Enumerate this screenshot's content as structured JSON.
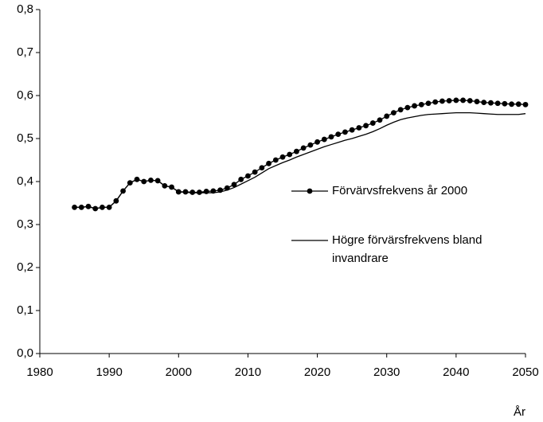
{
  "chart_data": {
    "type": "line",
    "x": [
      1985,
      1986,
      1987,
      1988,
      1989,
      1990,
      1991,
      1992,
      1993,
      1994,
      1995,
      1996,
      1997,
      1998,
      1999,
      2000,
      2001,
      2002,
      2003,
      2004,
      2005,
      2006,
      2007,
      2008,
      2009,
      2010,
      2011,
      2012,
      2013,
      2014,
      2015,
      2016,
      2017,
      2018,
      2019,
      2020,
      2021,
      2022,
      2023,
      2024,
      2025,
      2026,
      2027,
      2028,
      2029,
      2030,
      2031,
      2032,
      2033,
      2034,
      2035,
      2036,
      2037,
      2038,
      2039,
      2040,
      2041,
      2042,
      2043,
      2044,
      2045,
      2046,
      2047,
      2048,
      2049,
      2050
    ],
    "series": [
      {
        "name": "Förvärvsfrekvens år 2000",
        "color": "#000000",
        "markers": true,
        "values": [
          0.34,
          0.34,
          0.342,
          0.337,
          0.34,
          0.34,
          0.355,
          0.378,
          0.397,
          0.405,
          0.4,
          0.403,
          0.402,
          0.39,
          0.387,
          0.376,
          0.376,
          0.375,
          0.375,
          0.377,
          0.378,
          0.38,
          0.385,
          0.393,
          0.405,
          0.413,
          0.422,
          0.432,
          0.442,
          0.45,
          0.457,
          0.463,
          0.47,
          0.478,
          0.485,
          0.492,
          0.498,
          0.504,
          0.51,
          0.515,
          0.52,
          0.525,
          0.53,
          0.536,
          0.543,
          0.552,
          0.56,
          0.567,
          0.572,
          0.576,
          0.579,
          0.582,
          0.585,
          0.587,
          0.588,
          0.589,
          0.589,
          0.588,
          0.586,
          0.584,
          0.583,
          0.582,
          0.581,
          0.58,
          0.58,
          0.579
        ]
      },
      {
        "name": "Högre förvärsfrekvens bland invandrare",
        "color": "#000000",
        "markers": false,
        "values": [
          0.34,
          0.34,
          0.342,
          0.337,
          0.34,
          0.34,
          0.355,
          0.378,
          0.397,
          0.405,
          0.4,
          0.403,
          0.402,
          0.39,
          0.387,
          0.376,
          0.375,
          0.374,
          0.374,
          0.374,
          0.374,
          0.376,
          0.38,
          0.386,
          0.394,
          0.402,
          0.41,
          0.42,
          0.43,
          0.437,
          0.444,
          0.45,
          0.457,
          0.463,
          0.469,
          0.475,
          0.481,
          0.486,
          0.491,
          0.496,
          0.5,
          0.505,
          0.51,
          0.516,
          0.523,
          0.531,
          0.538,
          0.544,
          0.548,
          0.551,
          0.554,
          0.556,
          0.557,
          0.558,
          0.559,
          0.56,
          0.56,
          0.56,
          0.559,
          0.558,
          0.557,
          0.556,
          0.556,
          0.556,
          0.556,
          0.558
        ]
      }
    ],
    "x_label": "År",
    "xlim": [
      1980,
      2050
    ],
    "xticks": [
      1980,
      1990,
      2000,
      2010,
      2020,
      2030,
      2040,
      2050
    ],
    "ylim": [
      0,
      0.8
    ],
    "yticks": [
      {
        "value": 0,
        "label": "0,0"
      },
      {
        "value": 0.1,
        "label": "0,1"
      },
      {
        "value": 0.2,
        "label": "0,2"
      },
      {
        "value": 0.3,
        "label": "0,3"
      },
      {
        "value": 0.4,
        "label": "0,4"
      },
      {
        "value": 0.5,
        "label": "0,5"
      },
      {
        "value": 0.6,
        "label": "0,6"
      },
      {
        "value": 0.7,
        "label": "0,7"
      },
      {
        "value": 0.8,
        "label": "0,8"
      }
    ],
    "grid": false
  }
}
